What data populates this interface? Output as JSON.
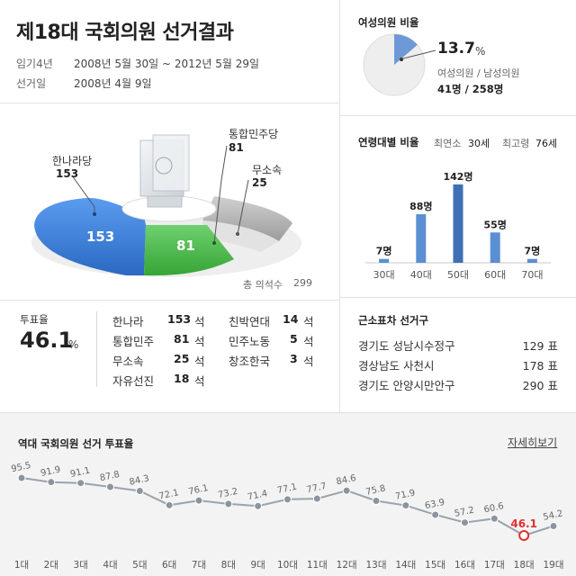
{
  "header": {
    "title": "제18대 국회의원 선거결과",
    "term_label": "임기4년",
    "term_value": "2008년 5월 30일 ~ 2012년 5월 29일",
    "election_day_label": "선거일",
    "election_day_value": "2008년 4월 9일"
  },
  "seat_chart": {
    "labels": [
      {
        "name": "한나라당",
        "value": "153"
      },
      {
        "name": "통합민주당",
        "value": "81"
      },
      {
        "name": "무소속",
        "value": "25"
      }
    ],
    "inner_labels": [
      "153",
      "81"
    ],
    "total_label": "총 의석수",
    "total_value": "299",
    "colors": {
      "grand_national": "#3a7fd6",
      "democratic": "#4dbb4d",
      "independent": "#bcbcbc",
      "other": "#d9d9d9"
    }
  },
  "turnout": {
    "label": "투표율",
    "value": "46.1",
    "unit": "%"
  },
  "party_seats": {
    "unit": "석",
    "left": [
      {
        "name": "한나라",
        "seats": "153"
      },
      {
        "name": "통합민주",
        "seats": "81"
      },
      {
        "name": "무소속",
        "seats": "25"
      },
      {
        "name": "자유선진",
        "seats": "18"
      }
    ],
    "right": [
      {
        "name": "친박연대",
        "seats": "14"
      },
      {
        "name": "민주노동",
        "seats": "5"
      },
      {
        "name": "창조한국",
        "seats": "3"
      }
    ]
  },
  "women": {
    "title": "여성의원 비율",
    "percent": "13.7",
    "percent_unit": "%",
    "caption": "여성의원 / 남성의원",
    "counts": "41명 / 258명",
    "fraction": 0.137,
    "colors": {
      "women": "#6d9ad6",
      "men": "#eeeeee"
    }
  },
  "age": {
    "title": "연령대별 비율",
    "youngest_label": "최연소",
    "youngest_value": "30세",
    "oldest_label": "최고령",
    "oldest_value": "76세"
  },
  "closest": {
    "title": "근소표차 선거구",
    "rows": [
      {
        "district": "경기도 성남시수정구",
        "votes": "129 표"
      },
      {
        "district": "경상남도 사천시",
        "votes": "178 표"
      },
      {
        "district": "경기도 안양시만안구",
        "votes": "290 표"
      }
    ]
  },
  "history": {
    "title": "역대 국회의원 선거 투표율",
    "more_label": "자세히보기"
  },
  "chart_data": [
    {
      "type": "bar",
      "categories": [
        "30대",
        "40대",
        "50대",
        "60대",
        "70대"
      ],
      "values": [
        7,
        88,
        142,
        55,
        7
      ],
      "value_labels": [
        "7명",
        "88명",
        "142명",
        "55명",
        "7명"
      ],
      "title": "연령대별 비율",
      "ylim": [
        0,
        150
      ],
      "grid": false,
      "colors": {
        "bar": "#5b8fd3",
        "bar_max": "#3f6fb5"
      }
    },
    {
      "type": "line",
      "categories": [
        "1대",
        "2대",
        "3대",
        "4대",
        "5대",
        "6대",
        "7대",
        "8대",
        "9대",
        "10대",
        "11대",
        "12대",
        "13대",
        "14대",
        "15대",
        "16대",
        "17대",
        "18대",
        "19대"
      ],
      "values": [
        95.5,
        91.9,
        91.1,
        87.8,
        84.3,
        72.1,
        76.1,
        73.2,
        71.4,
        77.1,
        77.7,
        84.6,
        75.8,
        71.9,
        63.9,
        57.2,
        60.6,
        46.1,
        54.2
      ],
      "title": "역대 국회의원 선거 투표율",
      "highlight": "18대",
      "ylim": [
        40,
        100
      ],
      "grid": false,
      "colors": {
        "line": "#9aa3ad",
        "point": "#8b95a0",
        "highlight": "#e03030"
      }
    }
  ]
}
